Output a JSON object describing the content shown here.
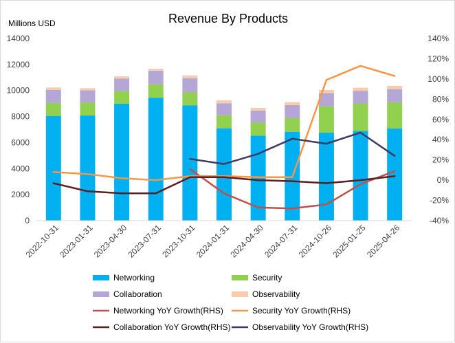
{
  "chart_data": {
    "type": "bar",
    "title": "Revenue By Products",
    "ylabel": "Millions USD",
    "ylim": [
      0,
      14000
    ],
    "yticks": [
      "0",
      "2000",
      "4000",
      "6000",
      "8000",
      "10000",
      "12000",
      "14000"
    ],
    "y2lim": [
      -40,
      140
    ],
    "y2ticks": [
      "-40%",
      "-20%",
      "0%",
      "20%",
      "40%",
      "60%",
      "80%",
      "100%",
      "120%",
      "140%"
    ],
    "categories": [
      "2022-10-31",
      "2023-01-31",
      "2023-04-30",
      "2023-07-31",
      "2023-10-31",
      "2024-01-31",
      "2024-04-30",
      "2024-07-31",
      "2024-10-26",
      "2025-01-25",
      "2025-04-26"
    ],
    "bar_series": [
      {
        "name": "Networking",
        "color": "#00b0f0",
        "values": [
          8050,
          8080,
          8980,
          9450,
          8850,
          7100,
          6530,
          6830,
          6760,
          6900,
          7080
        ]
      },
      {
        "name": "Security",
        "color": "#92d050",
        "values": [
          1000,
          1000,
          980,
          1030,
          1000,
          1000,
          1000,
          1040,
          2020,
          2110,
          2010
        ]
      },
      {
        "name": "Collaboration",
        "color": "#b4a7d6",
        "values": [
          1000,
          930,
          950,
          1040,
          1100,
          920,
          930,
          1010,
          1030,
          970,
          1020
        ]
      },
      {
        "name": "Observability",
        "color": "#f8cbad",
        "values": [
          180,
          170,
          180,
          150,
          210,
          230,
          200,
          230,
          230,
          240,
          250
        ]
      }
    ],
    "line_series": [
      {
        "name": "Networking YoY Growth(RHS)",
        "color": "#c0504d",
        "start": 4,
        "values": [
          11,
          -13,
          -27,
          -28,
          -24,
          -4,
          9
        ]
      },
      {
        "name": "Security YoY Growth(RHS)",
        "color": "#f79646",
        "start": 0,
        "values": [
          8,
          6,
          2,
          0,
          4,
          4,
          3,
          3,
          99,
          113,
          103
        ]
      },
      {
        "name": "Collaboration YoY Growth(RHS)",
        "color": "#5c1f1f",
        "start": 0,
        "values": [
          -3,
          -11,
          -13,
          -13,
          3,
          3,
          0,
          -1,
          -3,
          0,
          4
        ]
      },
      {
        "name": "Observability YoY Growth(RHS)",
        "color": "#403a60",
        "start": 4,
        "values": [
          21,
          16,
          26,
          41,
          36,
          47,
          24
        ]
      }
    ],
    "legend": [
      "Networking",
      "Security",
      "Collaboration",
      "Observability",
      "Networking YoY Growth(RHS)",
      "Security YoY Growth(RHS)",
      "Collaboration YoY Growth(RHS)",
      "Observability YoY Growth(RHS)"
    ],
    "grid": false
  }
}
